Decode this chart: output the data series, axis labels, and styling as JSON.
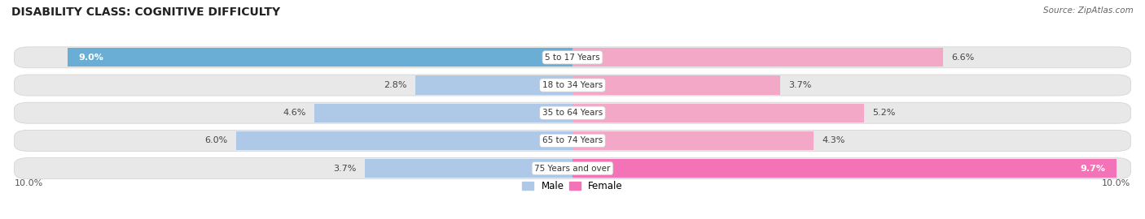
{
  "title": "DISABILITY CLASS: COGNITIVE DIFFICULTY",
  "source": "Source: ZipAtlas.com",
  "categories": [
    "5 to 17 Years",
    "18 to 34 Years",
    "35 to 64 Years",
    "65 to 74 Years",
    "75 Years and over"
  ],
  "male_values": [
    9.0,
    2.8,
    4.6,
    6.0,
    3.7
  ],
  "female_values": [
    6.6,
    3.7,
    5.2,
    4.3,
    9.7
  ],
  "male_color_dark": "#6aaed6",
  "male_color_light": "#aec8e8",
  "female_color_dark": "#f472b6",
  "female_color_light": "#f4a8c8",
  "x_max": 10.0,
  "background_color": "#ffffff",
  "row_bg_color": "#e8e8e8",
  "title_fontsize": 10,
  "bar_fontsize": 8,
  "legend_fontsize": 8.5,
  "source_fontsize": 7.5,
  "bar_height": 0.68
}
